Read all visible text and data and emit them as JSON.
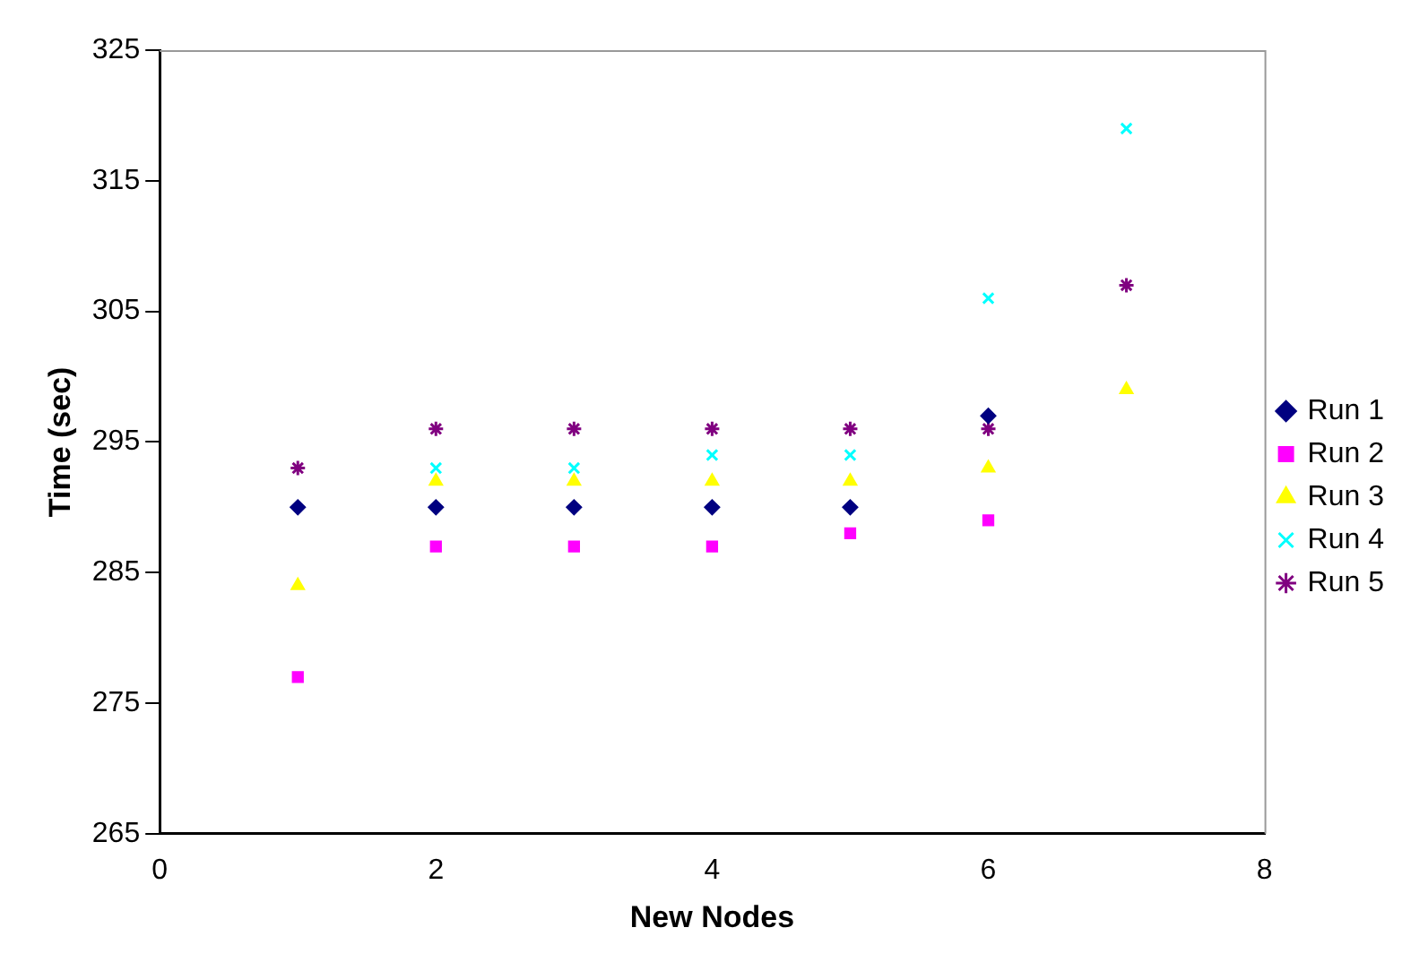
{
  "chart_data": {
    "type": "scatter",
    "xlabel": "New Nodes",
    "ylabel": "Time (sec)",
    "x": [
      1,
      2,
      3,
      4,
      5,
      6,
      7
    ],
    "series": [
      {
        "name": "Run 1",
        "color": "#000080",
        "marker": "diamond",
        "values": [
          290,
          290,
          290,
          290,
          290,
          297,
          null
        ]
      },
      {
        "name": "Run 2",
        "color": "#ff00ff",
        "marker": "square",
        "values": [
          277,
          287,
          287,
          287,
          288,
          289,
          null
        ]
      },
      {
        "name": "Run 3",
        "color": "#ffff00",
        "marker": "triangle",
        "values": [
          284,
          292,
          292,
          292,
          292,
          293,
          299
        ]
      },
      {
        "name": "Run 4",
        "color": "#00ffff",
        "marker": "cross",
        "values": [
          null,
          293,
          293,
          294,
          294,
          306,
          319
        ]
      },
      {
        "name": "Run 5",
        "color": "#800080",
        "marker": "cross",
        "values": [
          293,
          296,
          296,
          296,
          296,
          296,
          307
        ]
      }
    ],
    "xlim": [
      0,
      8
    ],
    "xticks": [
      0,
      2,
      4,
      6,
      8
    ],
    "ylim": [
      265,
      325
    ],
    "yticks": [
      265,
      275,
      285,
      295,
      305,
      315,
      325
    ],
    "grid": false,
    "legend": "right"
  }
}
